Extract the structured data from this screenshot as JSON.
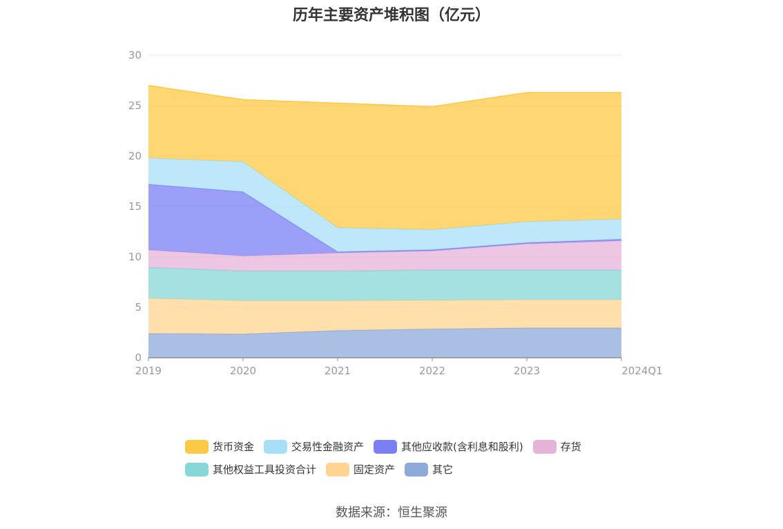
{
  "title": "历年主要资产堆积图（亿元）",
  "source": "数据来源：恒生聚源",
  "chart_data": {
    "type": "area",
    "stacked": true,
    "categories": [
      "2019",
      "2020",
      "2021",
      "2022",
      "2023",
      "2024Q1"
    ],
    "ylim": [
      0,
      30
    ],
    "yticks": [
      0,
      5,
      10,
      15,
      20,
      25,
      30
    ],
    "grid": true,
    "legend_position": "bottom",
    "series": [
      {
        "name": "其它",
        "color": "#8eaadb",
        "values": [
          2.4,
          2.35,
          2.7,
          2.85,
          2.95,
          2.95
        ]
      },
      {
        "name": "固定资产",
        "color": "#ffd591",
        "values": [
          3.5,
          3.3,
          2.95,
          2.85,
          2.8,
          2.8
        ]
      },
      {
        "name": "其他权益工具投资合计",
        "color": "#87d7d6",
        "values": [
          3.05,
          2.95,
          2.95,
          3.0,
          2.95,
          2.95
        ]
      },
      {
        "name": "存货",
        "color": "#e6b3d8",
        "values": [
          1.75,
          1.5,
          1.8,
          1.9,
          2.6,
          2.9
        ]
      },
      {
        "name": "其他应收款(含利息和股利)",
        "color": "#7b7ff5",
        "values": [
          6.5,
          6.35,
          0.1,
          0.1,
          0.1,
          0.15
        ]
      },
      {
        "name": "交易性金融资产",
        "color": "#a8dff8",
        "values": [
          2.6,
          3.0,
          2.4,
          2.0,
          2.1,
          2.0
        ]
      },
      {
        "name": "货币资金",
        "color": "#fdc843",
        "values": [
          7.2,
          6.15,
          12.35,
          12.2,
          12.8,
          12.55
        ]
      }
    ]
  },
  "legend_rows": [
    [
      {
        "label": "货币资金",
        "color": "#fdc843"
      },
      {
        "label": "交易性金融资产",
        "color": "#a8dff8"
      },
      {
        "label": "其他应收款(含利息和股利)",
        "color": "#7b7ff5"
      },
      {
        "label": "存货",
        "color": "#e6b3d8"
      }
    ],
    [
      {
        "label": "其他权益工具投资合计",
        "color": "#87d7d6"
      },
      {
        "label": "固定资产",
        "color": "#ffd591"
      },
      {
        "label": "其它",
        "color": "#8eaadb"
      }
    ]
  ]
}
